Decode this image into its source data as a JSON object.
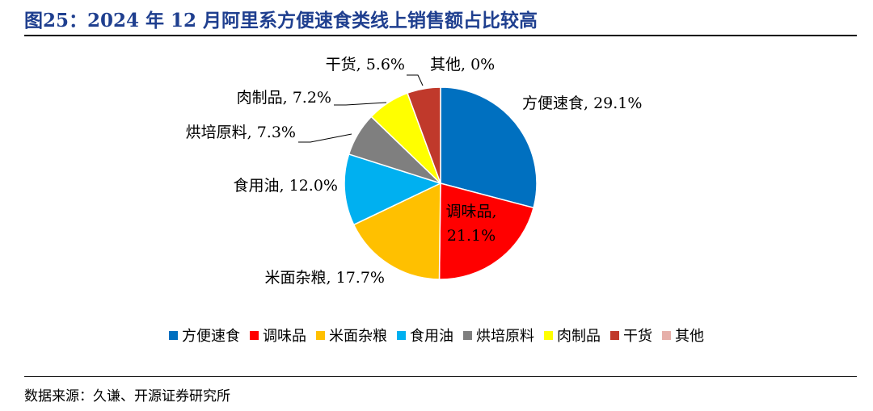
{
  "title": "图25：2024 年 12 月阿里系方便速食类线上销售额占比较高",
  "source": "数据来源：久谦、开源证券研究所",
  "chart_data": {
    "type": "pie",
    "title": "",
    "slices": [
      {
        "name": "方便速食",
        "value": 29.1,
        "label": "方便速食, 29.1%",
        "color": "#0070c0"
      },
      {
        "name": "调味品",
        "value": 21.1,
        "label": "调味品,",
        "label2": "21.1%",
        "color": "#ff0000"
      },
      {
        "name": "米面杂粮",
        "value": 17.7,
        "label": "米面杂粮, 17.7%",
        "color": "#ffc000"
      },
      {
        "name": "食用油",
        "value": 12.0,
        "label": "食用油, 12.0%",
        "color": "#00b0f0"
      },
      {
        "name": "烘培原料",
        "value": 7.3,
        "label": "烘培原料, 7.3%",
        "color": "#7f7f7f"
      },
      {
        "name": "肉制品",
        "value": 7.2,
        "label": "肉制品, 7.2%",
        "color": "#ffff00"
      },
      {
        "name": "干货",
        "value": 5.6,
        "label": "干货, 5.6%",
        "color": "#c0392b"
      },
      {
        "name": "其他",
        "value": 0.0,
        "label": "其他, 0%",
        "color": "#e6b0aa"
      }
    ],
    "legend_position": "bottom"
  }
}
